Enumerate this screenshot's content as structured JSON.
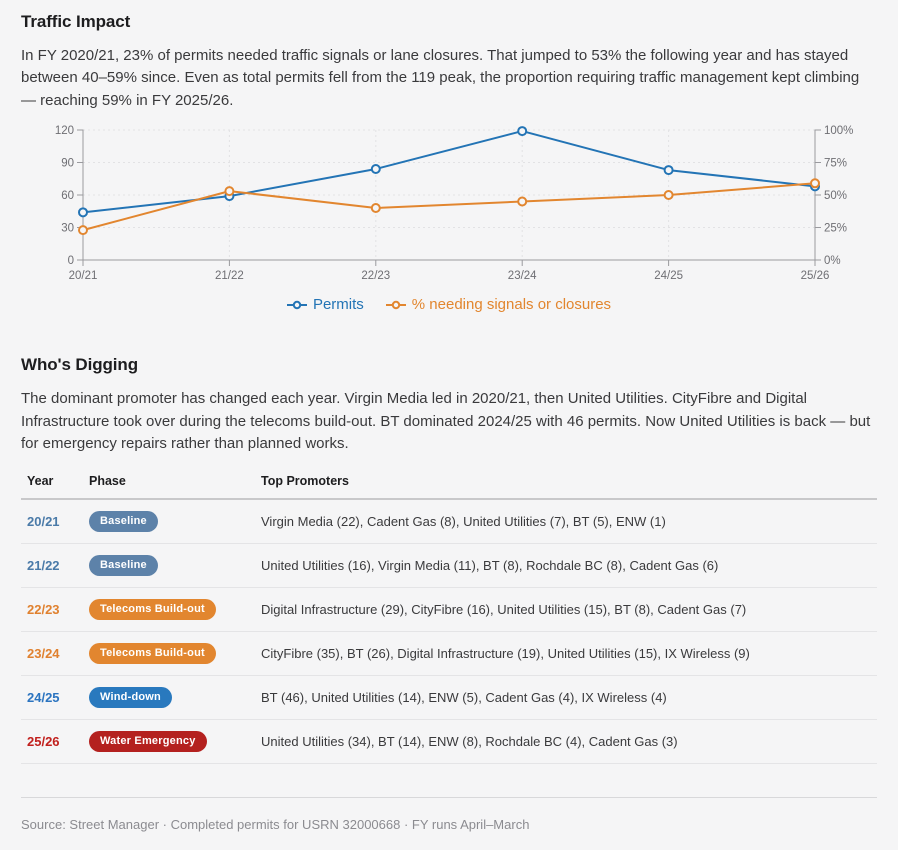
{
  "traffic_impact": {
    "title": "Traffic Impact",
    "description": "In FY 2020/21, 23% of permits needed traffic signals or lane closures. That jumped to 53% the following year and has stayed between 40–59% since. Even as total permits fell from the 119 peak, the proportion requiring traffic management kept climbing — reaching 59% in FY 2025/26."
  },
  "chart_data": {
    "type": "line",
    "categories": [
      "20/21",
      "21/22",
      "22/23",
      "23/24",
      "24/25",
      "25/26"
    ],
    "series": [
      {
        "name": "Permits",
        "axis": "left",
        "color": "#2374b5",
        "values": [
          44,
          59,
          84,
          119,
          83,
          68
        ]
      },
      {
        "name": "% needing signals or closures",
        "axis": "right",
        "color": "#e2862f",
        "values": [
          23,
          53,
          40,
          45,
          50,
          59
        ]
      }
    ],
    "left_axis": {
      "range": [
        0,
        120
      ],
      "ticks": [
        0,
        30,
        60,
        90,
        120
      ]
    },
    "right_axis": {
      "range": [
        0,
        100
      ],
      "ticks": [
        0,
        25,
        50,
        75,
        100
      ],
      "tick_suffix": "%"
    },
    "grid": "dotted-both",
    "legend_position": "bottom",
    "colors": {
      "axis": "#9a9a9e",
      "grid": "#e2e2e4",
      "tick_label": "#6e6e73",
      "marker_fill": "#f5f5f6"
    }
  },
  "whos_digging": {
    "title": "Who's Digging",
    "description": "The dominant promoter has changed each year. Virgin Media led in 2020/21, then United Utilities. CityFibre and Digital Infrastructure took over during the telecoms build-out. BT dominated 2024/25 with 46 permits. Now United Utilities is back — but for emergency repairs rather than planned works."
  },
  "table": {
    "columns": [
      "Year",
      "Phase",
      "Top Promoters"
    ],
    "rows": [
      {
        "year": "20/21",
        "year_color": "#4a7aa8",
        "phase": "Baseline",
        "phase_color": "#5d82a9",
        "promoters": "Virgin Media (22), Cadent Gas (8), United Utilities (7), BT (5), ENW (1)"
      },
      {
        "year": "21/22",
        "year_color": "#4a7aa8",
        "phase": "Baseline",
        "phase_color": "#5d82a9",
        "promoters": "United Utilities (16), Virgin Media (11), BT (8), Rochdale BC (8), Cadent Gas (6)"
      },
      {
        "year": "22/23",
        "year_color": "#e0812f",
        "phase": "Telecoms Build-out",
        "phase_color": "#e2862f",
        "promoters": "Digital Infrastructure (29), CityFibre (16), United Utilities (15), BT (8), Cadent Gas (7)"
      },
      {
        "year": "23/24",
        "year_color": "#e0812f",
        "phase": "Telecoms Build-out",
        "phase_color": "#e2862f",
        "promoters": "CityFibre (35), BT (26), Digital Infrastructure (19), United Utilities (15), IX Wireless (9)"
      },
      {
        "year": "24/25",
        "year_color": "#2b74c0",
        "phase": "Wind-down",
        "phase_color": "#2979be",
        "promoters": "BT (46), United Utilities (14), ENW (5), Cadent Gas (4), IX Wireless (4)"
      },
      {
        "year": "25/26",
        "year_color": "#c1201d",
        "phase": "Water Emergency",
        "phase_color": "#b4211f",
        "promoters": "United Utilities (34), BT (14), ENW (8), Rochdale BC (4), Cadent Gas (3)"
      }
    ]
  },
  "footer": {
    "source": "Source: Street Manager · Completed permits for USRN 32000668 · FY runs April–March"
  }
}
